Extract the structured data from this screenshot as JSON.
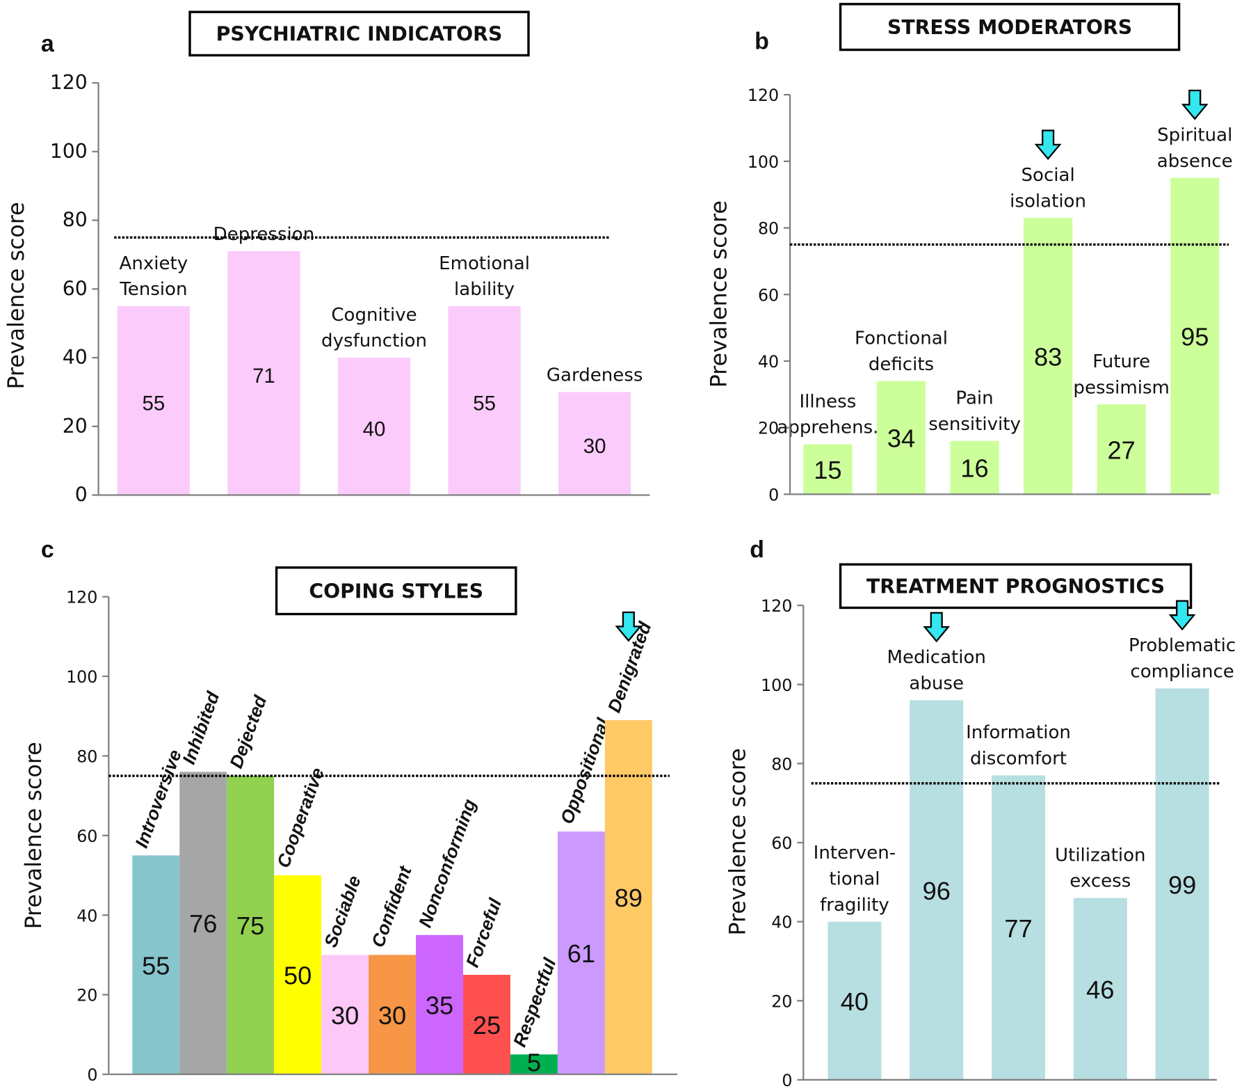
{
  "chart_data": [
    {
      "type": "bar",
      "panel": "a",
      "title": "PSYCHIATRIC INDICATORS",
      "ylabel": "Prevalence score",
      "categories": [
        "Anxiety\nTension",
        "Depression",
        "Cognitive\ndysfunction",
        "Emotional\nlability",
        "Gardeness"
      ],
      "values": [
        55,
        71,
        40,
        55,
        30
      ],
      "color": "#fbcbfb",
      "threshold": 75,
      "arrows": [
        false,
        false,
        false,
        false,
        false
      ],
      "ylim": [
        0,
        120
      ],
      "yticks": [
        0,
        20,
        40,
        60,
        80,
        100,
        120
      ]
    },
    {
      "type": "bar",
      "panel": "b",
      "title": "STRESS MODERATORS",
      "ylabel": "Prevalence score",
      "categories": [
        "Illness\napprehens.",
        "Fonctional\ndeficits",
        "Pain\nsensitivity",
        "Social\nisolation",
        "Future\npessimism",
        "Spiritual\nabsence"
      ],
      "values": [
        15,
        34,
        16,
        83,
        27,
        95
      ],
      "color": "#ccff99",
      "threshold": 75,
      "arrows": [
        false,
        false,
        false,
        true,
        false,
        true
      ],
      "ylim": [
        0,
        120
      ],
      "yticks": [
        0,
        20,
        40,
        60,
        80,
        100,
        120
      ]
    },
    {
      "type": "bar",
      "panel": "c",
      "title": "COPING STYLES",
      "ylabel": "Prevalence score",
      "categories": [
        "Introversive",
        "Inhibited",
        "Dejected",
        "Cooperative",
        "Sociable",
        "Confident",
        "Nonconforming",
        "Forceful",
        "Respectful",
        "Oppositional",
        "Denigrated"
      ],
      "values": [
        55,
        76,
        75,
        50,
        30,
        30,
        35,
        25,
        5,
        61,
        89
      ],
      "colors": [
        "#86c5cc",
        "#a6a6a6",
        "#92d050",
        "#ffff00",
        "#fbc8f7",
        "#f79646",
        "#cc66ff",
        "#ff5050",
        "#00b050",
        "#cc99ff",
        "#ffc966"
      ],
      "threshold": 75,
      "arrows": [
        false,
        false,
        false,
        false,
        false,
        false,
        false,
        false,
        false,
        false,
        true
      ],
      "ylim": [
        0,
        120
      ],
      "yticks": [
        0,
        20,
        40,
        60,
        80,
        100,
        120
      ]
    },
    {
      "type": "bar",
      "panel": "d",
      "title": "TREATMENT PROGNOSTICS",
      "ylabel": "Prevalence score",
      "categories": [
        "Interven-\ntional\nfragility",
        "Medication\nabuse",
        "Information\ndiscomfort",
        "Utilization\nexcess",
        "Problematic\ncompliance"
      ],
      "values": [
        40,
        96,
        77,
        46,
        99
      ],
      "color": "#b7dee1",
      "threshold": 75,
      "arrows": [
        false,
        true,
        false,
        false,
        true
      ],
      "ylim": [
        0,
        120
      ],
      "yticks": [
        0,
        20,
        40,
        60,
        80,
        100,
        120
      ]
    }
  ]
}
